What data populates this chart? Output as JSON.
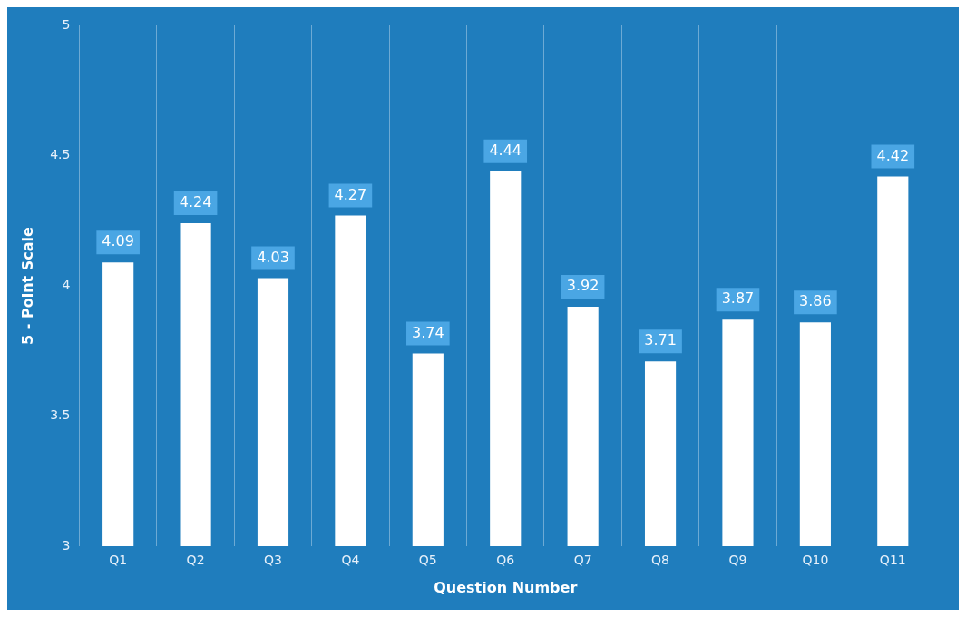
{
  "chart_data": {
    "type": "bar",
    "xlabel": "Question Number",
    "ylabel": "5 - Point Scale",
    "categories": [
      "Q1",
      "Q2",
      "Q3",
      "Q4",
      "Q5",
      "Q6",
      "Q7",
      "Q8",
      "Q9",
      "Q10",
      "Q11"
    ],
    "values": [
      4.09,
      4.24,
      4.03,
      4.27,
      3.74,
      4.44,
      3.92,
      3.71,
      3.87,
      3.86,
      4.42
    ],
    "color": "#ffffff",
    "ylim": [
      3,
      5
    ],
    "yticks": [
      3,
      3.5,
      4,
      4.5,
      5
    ],
    "grid": "x",
    "legend": false,
    "data_labels": true
  }
}
